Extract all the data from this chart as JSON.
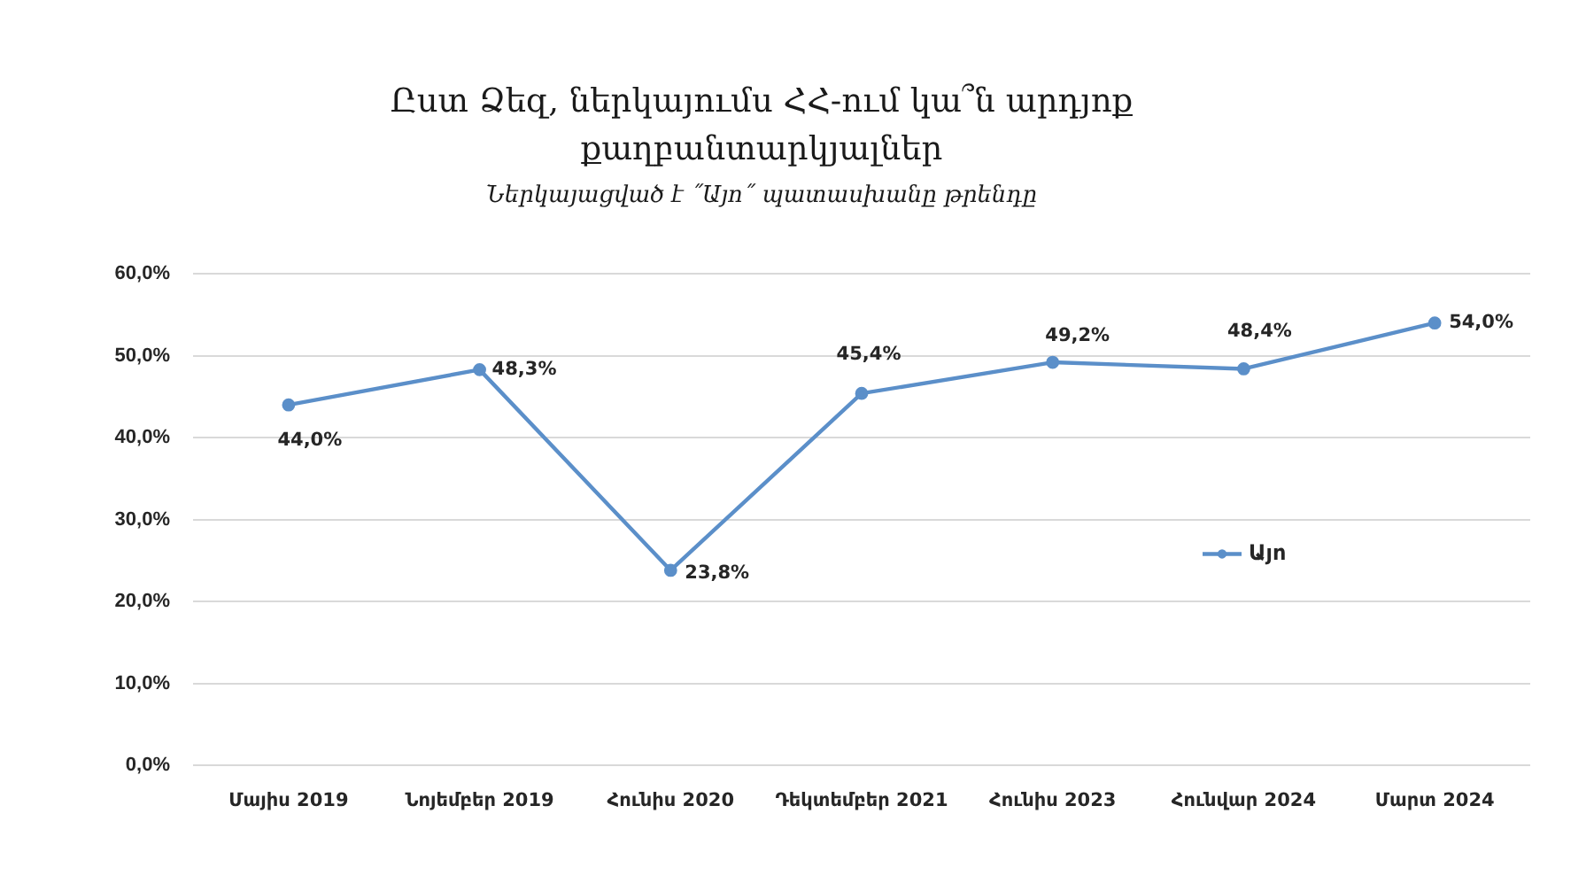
{
  "chart_data": {
    "type": "line",
    "title": "Ըստ Ձեզ, ներկայումս ՀՀ-ում կա՞ն արդյոք քաղբանտարկյալներ",
    "subtitle": "Ներկայացված է ˝Այո˝ պատասխանը թրենդը",
    "categories": [
      "Մայիս 2019",
      "Նոյեմբեր 2019",
      "Հունիս 2020",
      "Դեկտեմբեր 2021",
      "Հունիս 2023",
      "Հունվար 2024",
      "Մարտ 2024"
    ],
    "series": [
      {
        "name": "Այո",
        "color": "#5b8fc9",
        "values": [
          44.0,
          48.3,
          23.8,
          45.4,
          49.2,
          48.4,
          54.0
        ],
        "value_labels": [
          "44,0%",
          "48,3%",
          "23,8%",
          "45,4%",
          "49,2%",
          "48,4%",
          "54,0%"
        ]
      }
    ],
    "ylim": [
      0,
      60
    ],
    "yticks": [
      {
        "value": 0,
        "label": "0,0%"
      },
      {
        "value": 10,
        "label": "10,0%"
      },
      {
        "value": 20,
        "label": "20,0%"
      },
      {
        "value": 30,
        "label": "30,0%"
      },
      {
        "value": 40,
        "label": "40,0%"
      },
      {
        "value": 50,
        "label": "50,0%"
      },
      {
        "value": 60,
        "label": "60,0%"
      }
    ],
    "grid": "y",
    "legend": "right",
    "marker": "circle",
    "line_style": "solid"
  }
}
